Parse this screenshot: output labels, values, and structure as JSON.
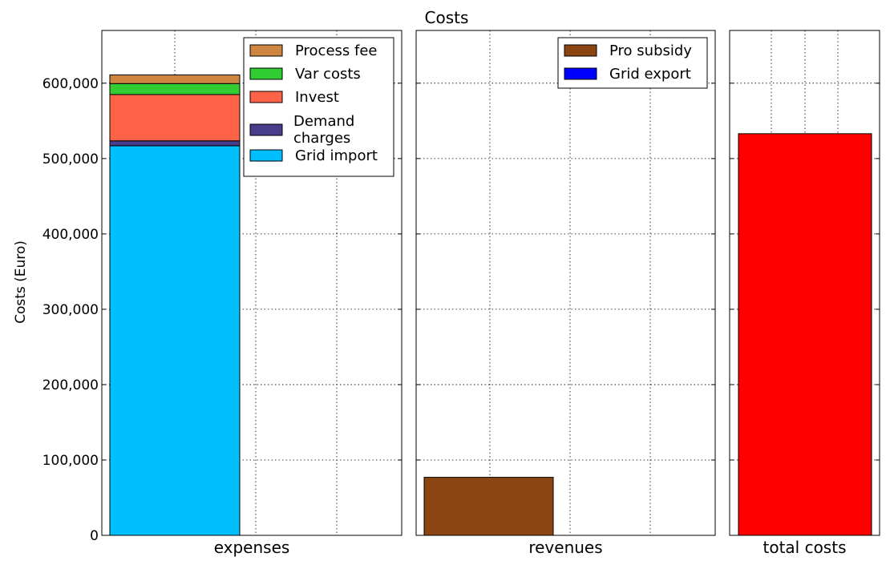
{
  "chart_data": {
    "type": "bar",
    "title": "Costs",
    "ylabel": "Costs (Euro)",
    "ylim": [
      0,
      670000
    ],
    "yticks": [
      0,
      100000,
      200000,
      300000,
      400000,
      500000,
      600000
    ],
    "ytick_labels": [
      "0",
      "100,000",
      "200,000",
      "300,000",
      "400,000",
      "500,000",
      "600,000"
    ],
    "grid": true,
    "panels": [
      {
        "xlabel": "expenses",
        "legend_position": "top-right",
        "stacked": true,
        "series": [
          {
            "name": "Grid import",
            "value": 517000,
            "color": "#00bfff"
          },
          {
            "name": "Demand charges",
            "value": 6500,
            "color": "#483d8b"
          },
          {
            "name": "Invest",
            "value": 61500,
            "color": "#ff6347"
          },
          {
            "name": "Var costs",
            "value": 14500,
            "color": "#32cd32"
          },
          {
            "name": "Process fee",
            "value": 11500,
            "color": "#cd853f"
          }
        ]
      },
      {
        "xlabel": "revenues",
        "legend_position": "top-right",
        "stacked": true,
        "series": [
          {
            "name": "Grid export",
            "value": 0,
            "color": "#0000ff"
          },
          {
            "name": "Pro subsidy",
            "value": 77000,
            "color": "#8b4513"
          }
        ]
      },
      {
        "xlabel": "total costs",
        "legend_position": "none",
        "stacked": true,
        "series": [
          {
            "name": "",
            "value": 533000,
            "color": "#ff0000"
          }
        ]
      }
    ]
  }
}
